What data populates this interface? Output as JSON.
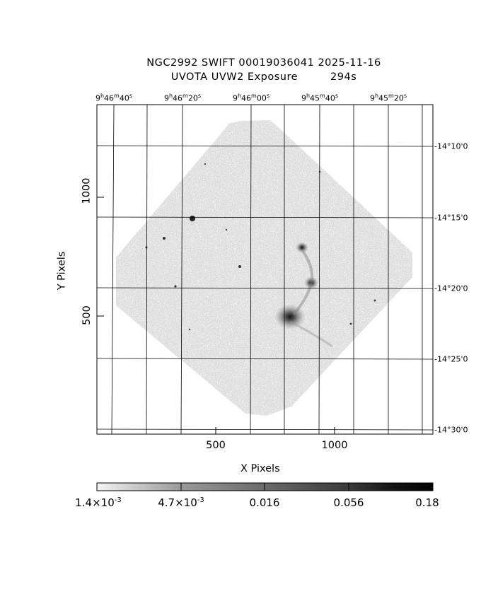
{
  "header": {
    "title_line1": "NGC2992 SWIFT 00019036041 2025-11-16",
    "title_line2_left": "UVOTA UVW2 Exposure",
    "title_line2_right": "294s"
  },
  "axes": {
    "xlabel": "X Pixels",
    "ylabel": "Y Pixels",
    "x_ticks": [
      "500",
      "1000"
    ],
    "y_ticks": [
      "1000",
      "500"
    ],
    "ra_ticks": [
      {
        "h": "9",
        "m": "46",
        "s": "40"
      },
      {
        "h": "9",
        "m": "46",
        "s": "20"
      },
      {
        "h": "9",
        "m": "46",
        "s": "00"
      },
      {
        "h": "9",
        "m": "45",
        "s": "40"
      },
      {
        "h": "9",
        "m": "45",
        "s": "20"
      }
    ],
    "dec_ticks": [
      "-14°10'0",
      "-14°15'0",
      "-14°20'0",
      "-14°25'0",
      "-14°30'0"
    ]
  },
  "colorbar": {
    "labels": [
      {
        "base": "1.4×10",
        "exp": "-3"
      },
      {
        "base": "4.7×10",
        "exp": "-3"
      },
      {
        "base": "0.016",
        "exp": ""
      },
      {
        "base": "0.056",
        "exp": ""
      },
      {
        "base": "0.18",
        "exp": ""
      }
    ]
  },
  "image": {
    "target": "NGC2992",
    "colors": {
      "background": "#ffffff",
      "field_light": "#d8d8d8",
      "field_dark": "#888888",
      "grid": "#000000"
    }
  }
}
